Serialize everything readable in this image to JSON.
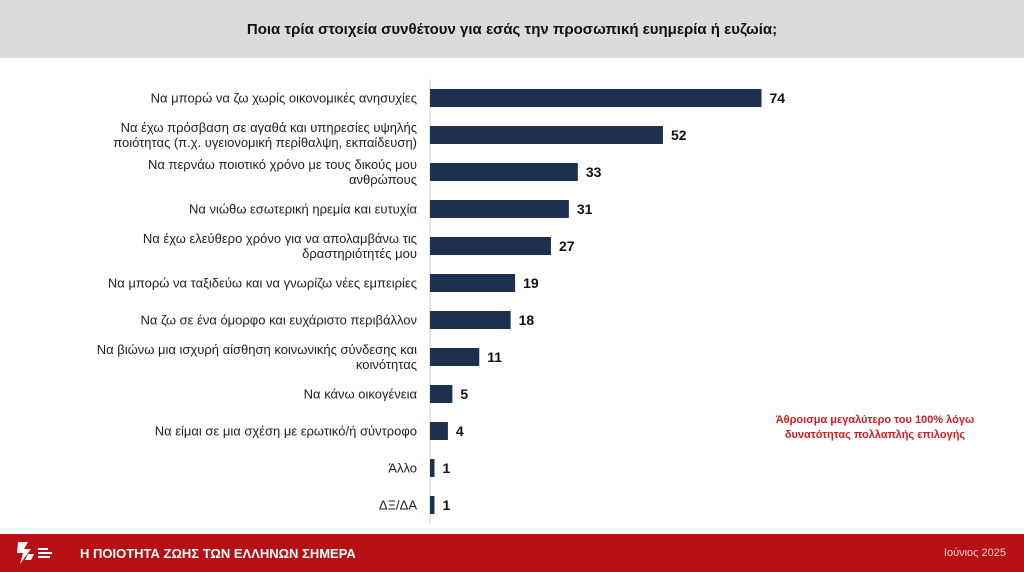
{
  "header": {
    "title": "Ποια τρία στοιχεία συνθέτουν για εσάς την προσωπική ευημερία ή ευζωία;"
  },
  "chart_data": {
    "type": "bar",
    "orientation": "horizontal",
    "categories": [
      [
        "Να μπορώ να ζω χωρίς οικονομικές ανησυχίες"
      ],
      [
        "Να έχω πρόσβαση σε αγαθά και υπηρεσίες υψηλής",
        "ποιότητας (π.χ. υγειονομική περίθαλψη, εκπαίδευση)"
      ],
      [
        "Να περνάω ποιοτικό χρόνο με τους δικούς μου",
        "ανθρώπους"
      ],
      [
        "Να νιώθω εσωτερική ηρεμία και ευτυχία"
      ],
      [
        "Να έχω ελεύθερο χρόνο για να απολαμβάνω τις",
        "δραστηριότητές μου"
      ],
      [
        "Να μπορώ να ταξιδεύω και να γνωρίζω νέες εμπειρίες"
      ],
      [
        "Να ζω σε ένα όμορφο και ευχάριστο περιβάλλον"
      ],
      [
        "Να βιώνω μια ισχυρή αίσθηση κοινωνικής σύνδεσης και",
        "κοινότητας"
      ],
      [
        "Να κάνω οικογένεια"
      ],
      [
        "Να είμαι σε μια σχέση με ερωτικό/ή σύντροφο"
      ],
      [
        "Άλλο"
      ],
      [
        "ΔΞ/ΔΑ"
      ]
    ],
    "values": [
      74,
      52,
      33,
      31,
      27,
      19,
      18,
      11,
      5,
      4,
      1,
      1
    ],
    "value_labels": [
      "74",
      "52",
      "33",
      "31",
      "27",
      "19",
      "18",
      "11",
      "5",
      "4",
      "1",
      "1"
    ],
    "bar_color": "#1e3050",
    "grid": false,
    "axis_line": true
  },
  "note": {
    "line1": "Άθροισμα μεγαλύτερο του 100% λόγω",
    "line2": "δυνατότητας πολλαπλής επιλογής",
    "color": "#d11d22"
  },
  "footer": {
    "title": "Η ΠΟΙΟΤΗΤΑ ΖΩΗΣ ΤΩΝ ΕΛΛΗΝΩΝ ΣΗΜΕΡΑ",
    "date": "Ιούνιος 2025",
    "background": "#b70f16",
    "logo_icon": "organization-logo-icon"
  }
}
